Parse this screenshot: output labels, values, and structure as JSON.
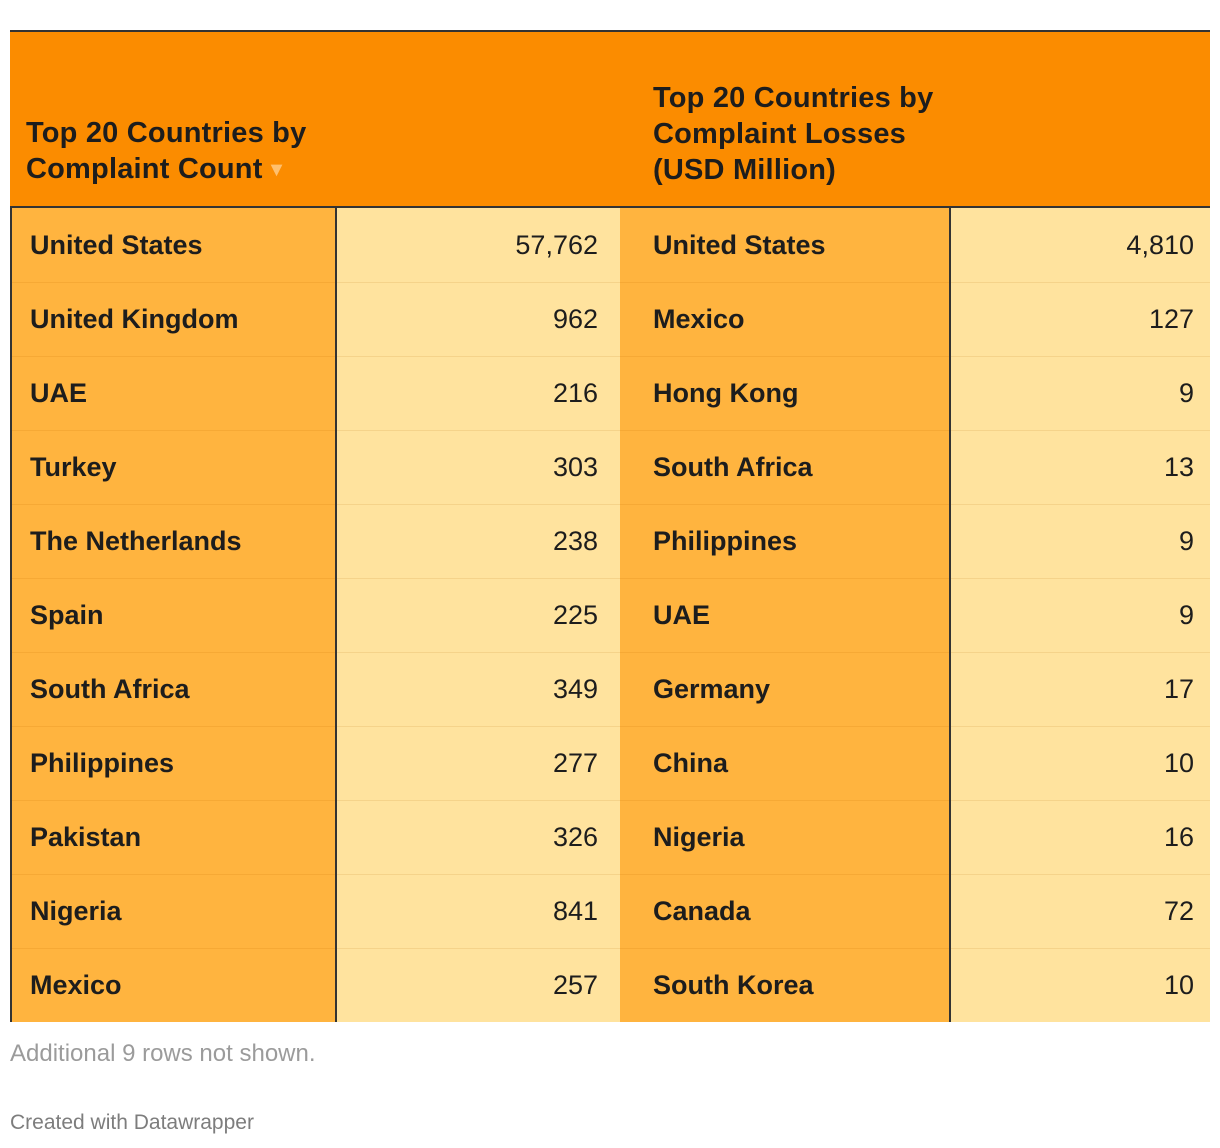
{
  "chart_data": {
    "type": "table",
    "columns": [
      "Top 20 Countries by Complaint Count",
      "",
      "Top 20 Countries by Complaint Losses (USD Million)",
      ""
    ],
    "sort_indicator": "▼",
    "rows": [
      [
        "United States",
        "57,762",
        "United States",
        "4,810"
      ],
      [
        "United Kingdom",
        "962",
        "Mexico",
        "127"
      ],
      [
        "UAE",
        "216",
        "Hong Kong",
        "9"
      ],
      [
        "Turkey",
        "303",
        "South Africa",
        "13"
      ],
      [
        "The Netherlands",
        "238",
        "Philippines",
        "9"
      ],
      [
        "Spain",
        "225",
        "UAE",
        "9"
      ],
      [
        "South Africa",
        "349",
        "Germany",
        "17"
      ],
      [
        "Philippines",
        "277",
        "China",
        "10"
      ],
      [
        "Pakistan",
        "326",
        "Nigeria",
        "16"
      ],
      [
        "Nigeria",
        "841",
        "Canada",
        "72"
      ],
      [
        "Mexico",
        "257",
        "South Korea",
        "10"
      ]
    ],
    "notes": "Additional 9 rows not shown.",
    "credit": "Created with Datawrapper",
    "colors": {
      "header": "#fb8c00",
      "name_cells": "#ffb43f",
      "value_cells": "#ffe39e"
    }
  }
}
